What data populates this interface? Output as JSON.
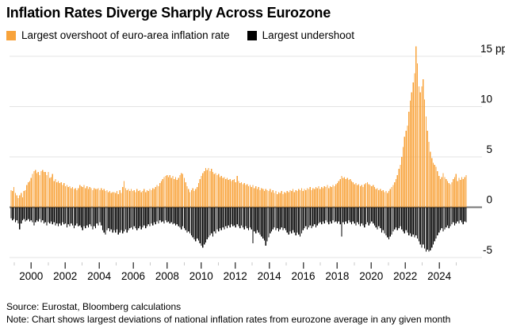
{
  "header": {
    "title": "Inflation Rates Diverge Sharply Across Eurozone"
  },
  "legend": {
    "overshoot_label": "Largest overshoot of euro-area inflation rate",
    "undershoot_label": "Largest undershoot",
    "overshoot_color": "#F8A33B",
    "undershoot_color": "#000000"
  },
  "footer": {
    "source": "Source: Eurostat, Bloomberg calculations",
    "note": "Note: Chart shows largest deviations of national inflation rates from eurozone average in any given month"
  },
  "chart_data": {
    "type": "bar",
    "title": "Inflation Rates Diverge Sharply Across Eurozone",
    "unit": "pp",
    "x_start": "1999-01",
    "x_end": "2025-07",
    "months_total": 319,
    "grid": true,
    "legend_position": "top-left",
    "ylim": [
      -6,
      16.5
    ],
    "y_ticks": [
      15,
      10,
      5,
      0,
      -5
    ],
    "y_tick_labels": [
      "15",
      "10",
      "5",
      "0",
      "-5"
    ],
    "x_tick_labels": [
      "2000",
      "2002",
      "2004",
      "2006",
      "2008",
      "2010",
      "2012",
      "2014",
      "2016",
      "2018",
      "2020",
      "2022",
      "2024"
    ],
    "x_tick_years_major": [
      2000,
      2002,
      2004,
      2006,
      2008,
      2010,
      2012,
      2014,
      2016,
      2018,
      2020,
      2022,
      2024
    ],
    "x_tick_years_minor": [
      1999,
      2001,
      2003,
      2005,
      2007,
      2009,
      2011,
      2013,
      2015,
      2017,
      2019,
      2021,
      2023,
      2025
    ],
    "colors": {
      "overshoot": "#F8A33B",
      "undershoot": "#000000",
      "gridline": "#E3E3E3",
      "zero_line": "#767676",
      "tick_major": "#4D4D4D",
      "tick_minor": "#C9C9C9",
      "text": "#000000"
    },
    "series": [
      {
        "name": "Largest overshoot of euro-area inflation rate",
        "color": "#F8A33B",
        "values": [
          1.7,
          1.6,
          2.0,
          1.4,
          1.2,
          0.9,
          1.2,
          1.4,
          1.0,
          1.6,
          1.7,
          2.2,
          2.5,
          2.6,
          2.9,
          3.3,
          3.6,
          3.7,
          3.4,
          3.5,
          3.2,
          3.6,
          3.7,
          3.5,
          3.5,
          3.2,
          3.5,
          2.9,
          3.0,
          3.3,
          2.6,
          2.8,
          2.5,
          2.6,
          2.4,
          2.5,
          2.2,
          2.4,
          2.1,
          2.2,
          2.0,
          2.1,
          1.9,
          2.0,
          1.8,
          1.9,
          1.7,
          1.9,
          2.2,
          2.1,
          2.0,
          2.2,
          1.9,
          2.1,
          1.8,
          2.0,
          1.9,
          1.7,
          1.9,
          1.8,
          1.8,
          1.9,
          1.7,
          1.9,
          1.7,
          1.8,
          1.6,
          1.7,
          1.5,
          1.6,
          1.4,
          1.5,
          1.5,
          1.4,
          1.6,
          1.3,
          1.7,
          1.4,
          2.0,
          2.6,
          1.9,
          1.7,
          1.8,
          1.6,
          1.8,
          1.6,
          1.7,
          1.5,
          1.8,
          1.6,
          1.7,
          1.5,
          1.6,
          1.8,
          1.5,
          1.7,
          1.6,
          1.8,
          1.7,
          1.9,
          1.8,
          2.0,
          2.2,
          2.1,
          2.4,
          2.6,
          2.8,
          3.0,
          3.1,
          3.2,
          3.0,
          3.2,
          2.9,
          3.1,
          2.8,
          3.0,
          2.7,
          2.9,
          3.2,
          3.4,
          3.3,
          2.9,
          2.5,
          2.1,
          1.8,
          1.5,
          1.7,
          1.9,
          1.6,
          1.8,
          2.0,
          2.4,
          2.8,
          3.1,
          3.4,
          3.6,
          3.9,
          3.7,
          3.9,
          3.6,
          3.8,
          3.5,
          3.3,
          3.4,
          3.2,
          3.3,
          3.0,
          3.1,
          2.9,
          3.0,
          2.8,
          2.9,
          2.7,
          2.8,
          2.6,
          2.7,
          2.8,
          2.5,
          3.1,
          2.6,
          2.4,
          2.5,
          2.3,
          2.4,
          2.2,
          2.3,
          2.1,
          2.2,
          2.0,
          2.2,
          1.9,
          2.1,
          1.8,
          2.0,
          1.7,
          1.9,
          1.8,
          1.6,
          1.8,
          1.7,
          1.6,
          1.8,
          1.5,
          1.7,
          1.4,
          1.6,
          1.3,
          1.5,
          1.4,
          1.6,
          1.3,
          1.5,
          1.4,
          1.6,
          1.5,
          1.7,
          1.6,
          1.8,
          1.5,
          1.7,
          1.6,
          1.8,
          1.7,
          1.9,
          1.6,
          1.8,
          1.7,
          1.9,
          1.8,
          2.0,
          1.7,
          1.9,
          1.8,
          2.0,
          1.9,
          2.1,
          1.8,
          2.0,
          1.9,
          2.1,
          2.0,
          2.2,
          1.9,
          2.1,
          2.0,
          2.2,
          2.1,
          2.3,
          2.4,
          2.6,
          2.8,
          3.1,
          2.9,
          3.0,
          2.8,
          2.9,
          2.7,
          2.8,
          2.6,
          2.5,
          2.3,
          2.4,
          2.2,
          2.3,
          2.1,
          2.2,
          2.0,
          2.3,
          2.4,
          2.5,
          2.3,
          2.2,
          2.1,
          2.2,
          2.0,
          1.8,
          1.9,
          1.7,
          1.8,
          1.6,
          1.7,
          1.5,
          1.6,
          1.4,
          1.6,
          1.8,
          2.0,
          2.2,
          2.5,
          2.8,
          3.2,
          3.8,
          4.2,
          5.0,
          6.0,
          7.0,
          7.6,
          8.1,
          9.5,
          10.6,
          11.4,
          12.4,
          13.3,
          16.0,
          14.3,
          12.0,
          11.4,
          12.0,
          12.7,
          10.7,
          9.0,
          7.6,
          6.5,
          5.5,
          4.9,
          4.4,
          4.2,
          4.0,
          3.6,
          3.1,
          2.8,
          3.0,
          3.4,
          3.0,
          2.8,
          2.6,
          2.4,
          2.3,
          2.5,
          2.8,
          3.0,
          3.3,
          2.6,
          2.9,
          2.7,
          3.0,
          2.8,
          3.0,
          3.2
        ]
      },
      {
        "name": "Largest undershoot",
        "color": "#000000",
        "values": [
          -1.1,
          -1.3,
          -1.2,
          -1.5,
          -1.3,
          -1.6,
          -2.2,
          -1.6,
          -1.3,
          -1.2,
          -1.4,
          -1.3,
          -1.2,
          -1.4,
          -1.3,
          -1.5,
          -1.8,
          -1.5,
          -1.3,
          -1.4,
          -1.2,
          -1.5,
          -1.3,
          -1.6,
          -1.5,
          -1.8,
          -1.5,
          -1.6,
          -1.4,
          -1.7,
          -1.5,
          -1.8,
          -1.6,
          -1.9,
          -1.6,
          -1.8,
          -1.5,
          -1.7,
          -1.6,
          -2.0,
          -1.7,
          -1.9,
          -1.6,
          -1.8,
          -2.1,
          -1.8,
          -1.6,
          -1.9,
          -1.8,
          -2.0,
          -2.3,
          -1.9,
          -2.1,
          -1.8,
          -2.0,
          -1.7,
          -1.9,
          -2.2,
          -1.9,
          -2.1,
          -1.6,
          -1.8,
          -1.5,
          -1.8,
          -2.3,
          -2.5,
          -2.7,
          -2.3,
          -2.1,
          -2.4,
          -2.2,
          -2.5,
          -2.3,
          -2.5,
          -2.2,
          -2.7,
          -2.5,
          -2.3,
          -2.6,
          -2.4,
          -2.2,
          -2.5,
          -2.3,
          -2.1,
          -2.0,
          -2.2,
          -1.9,
          -2.1,
          -2.3,
          -2.1,
          -1.9,
          -2.2,
          -2.0,
          -1.8,
          -2.1,
          -1.9,
          -1.7,
          -1.9,
          -1.6,
          -1.8,
          -1.5,
          -1.7,
          -1.4,
          -1.6,
          -1.3,
          -1.5,
          -1.4,
          -1.6,
          -1.3,
          -1.5,
          -1.4,
          -1.6,
          -1.5,
          -1.7,
          -1.6,
          -1.8,
          -1.7,
          -1.9,
          -2.0,
          -2.2,
          -1.9,
          -2.1,
          -2.3,
          -2.5,
          -2.4,
          -2.6,
          -2.8,
          -3.0,
          -3.2,
          -3.4,
          -3.1,
          -3.3,
          -3.6,
          -3.8,
          -4.0,
          -3.7,
          -3.5,
          -3.2,
          -3.0,
          -2.8,
          -2.6,
          -2.9,
          -2.4,
          -2.6,
          -2.2,
          -2.4,
          -2.1,
          -2.3,
          -2.0,
          -2.2,
          -1.9,
          -2.1,
          -1.8,
          -2.0,
          -1.7,
          -1.9,
          -1.8,
          -2.0,
          -1.7,
          -1.9,
          -2.1,
          -1.8,
          -2.0,
          -2.2,
          -1.9,
          -2.1,
          -2.3,
          -2.0,
          -2.2,
          -3.6,
          -2.4,
          -2.6,
          -2.3,
          -2.5,
          -2.7,
          -2.9,
          -3.1,
          -3.3,
          -3.8,
          -3.4,
          -3.0,
          -2.6,
          -2.4,
          -2.2,
          -2.0,
          -2.3,
          -2.1,
          -2.4,
          -2.2,
          -2.0,
          -2.3,
          -2.1,
          -2.3,
          -2.5,
          -2.7,
          -2.4,
          -2.6,
          -2.3,
          -2.5,
          -2.8,
          -2.5,
          -2.7,
          -2.9,
          -2.6,
          -2.3,
          -2.1,
          -1.9,
          -2.2,
          -2.0,
          -1.8,
          -2.1,
          -1.9,
          -1.7,
          -2.0,
          -1.8,
          -1.6,
          -1.5,
          -1.7,
          -1.4,
          -1.6,
          -1.3,
          -1.5,
          -1.7,
          -1.4,
          -1.6,
          -1.3,
          -1.5,
          -1.4,
          -1.6,
          -1.4,
          -1.7,
          -2.9,
          -1.5,
          -1.7,
          -1.4,
          -1.6,
          -1.3,
          -1.5,
          -1.7,
          -1.4,
          -1.6,
          -1.8,
          -1.5,
          -1.7,
          -1.9,
          -1.6,
          -1.8,
          -2.0,
          -1.7,
          -1.5,
          -1.8,
          -1.6,
          -1.4,
          -1.6,
          -1.8,
          -2.0,
          -2.2,
          -1.9,
          -2.1,
          -2.5,
          -2.3,
          -2.6,
          -2.8,
          -3.0,
          -3.2,
          -2.9,
          -2.7,
          -2.4,
          -2.2,
          -2.0,
          -2.3,
          -2.1,
          -1.9,
          -2.2,
          -2.4,
          -2.6,
          -2.3,
          -2.5,
          -2.8,
          -2.6,
          -2.9,
          -2.7,
          -3.0,
          -2.8,
          -3.1,
          -3.4,
          -3.7,
          -4.0,
          -3.7,
          -4.1,
          -4.4,
          -4.2,
          -4.4,
          -4.3,
          -4.0,
          -3.7,
          -3.4,
          -3.1,
          -2.8,
          -2.5,
          -2.3,
          -2.1,
          -2.4,
          -2.2,
          -2.0,
          -1.8,
          -2.1,
          -1.9,
          -1.7,
          -1.5,
          -1.8,
          -1.6,
          -1.4,
          -1.6,
          -1.3,
          -1.5,
          -1.7,
          -1.4,
          -1.5
        ]
      }
    ]
  }
}
